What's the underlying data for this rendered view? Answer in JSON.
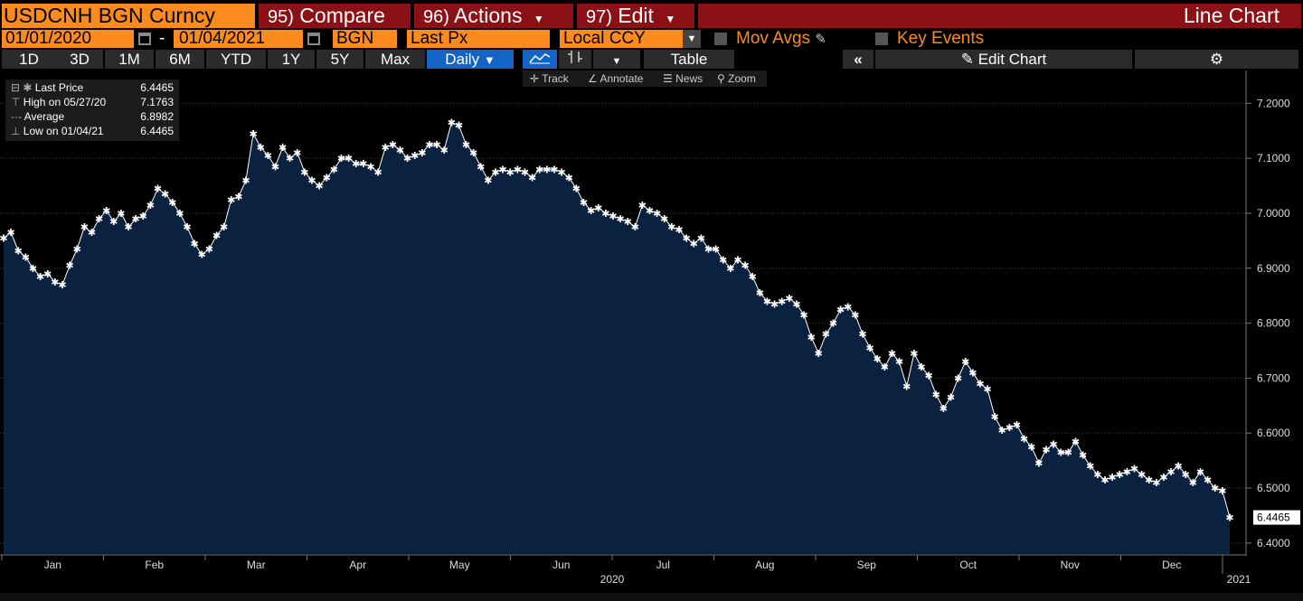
{
  "header": {
    "ticker": "USDCNH BGN Curncy",
    "compare": {
      "num": "95)",
      "label": "Compare"
    },
    "actions": {
      "num": "96)",
      "label": "Actions"
    },
    "edit": {
      "num": "97)",
      "label": "Edit"
    },
    "title": "Line Chart"
  },
  "controls": {
    "start_date": "01/01/2020",
    "dash": "-",
    "end_date": "01/04/2021",
    "source": "BGN",
    "field": "Last Px",
    "currency": "Local CCY",
    "mov_avgs": "Mov Avgs",
    "key_events": "Key Events"
  },
  "periods": [
    "1D",
    "3D",
    "1M",
    "6M",
    "YTD",
    "1Y",
    "5Y",
    "Max"
  ],
  "frequency": "Daily",
  "table_label": "Table",
  "edit_chart_label": "Edit Chart",
  "tools": {
    "track": "Track",
    "annotate": "Annotate",
    "news": "News",
    "zoom": "Zoom"
  },
  "legend": [
    {
      "label": "Last Price",
      "value": "6.4465"
    },
    {
      "label": "High on 05/27/20",
      "value": "7.1763"
    },
    {
      "label": "Average",
      "value": "6.8982"
    },
    {
      "label": "Low on 01/04/21",
      "value": "6.4465"
    }
  ],
  "colors": {
    "orange": "#fb8b1e",
    "dark_red": "#8b1116",
    "blue": "#1464c8",
    "area_fill": "#0b2140"
  },
  "chart_data": {
    "type": "area",
    "title": "USDCNH BGN Curncy",
    "series_name": "Last Price",
    "last_value_label": "6.4465",
    "ylim": [
      6.38,
      7.24
    ],
    "y_ticks": [
      "6.4000",
      "6.5000",
      "6.6000",
      "6.7000",
      "6.8000",
      "6.9000",
      "7.0000",
      "7.1000",
      "7.2000"
    ],
    "month_labels": [
      "Jan",
      "Feb",
      "Mar",
      "Apr",
      "May",
      "Jun",
      "Jul",
      "Aug",
      "Sep",
      "Oct",
      "Nov",
      "Dec"
    ],
    "year_labels": [
      "2020",
      "2021"
    ],
    "values": [
      6.955,
      6.965,
      6.932,
      6.92,
      6.9,
      6.885,
      6.89,
      6.875,
      6.87,
      6.905,
      6.935,
      6.975,
      6.965,
      6.99,
      7.005,
      6.985,
      7.0,
      6.975,
      6.99,
      6.995,
      7.015,
      7.045,
      7.035,
      7.02,
      7.0,
      6.975,
      6.945,
      6.925,
      6.935,
      6.96,
      6.975,
      7.025,
      7.03,
      7.06,
      7.145,
      7.12,
      7.105,
      7.085,
      7.12,
      7.1,
      7.11,
      7.075,
      7.06,
      7.05,
      7.065,
      7.08,
      7.1,
      7.1,
      7.09,
      7.09,
      7.085,
      7.075,
      7.12,
      7.125,
      7.115,
      7.1,
      7.105,
      7.11,
      7.125,
      7.125,
      7.115,
      7.165,
      7.16,
      7.125,
      7.11,
      7.085,
      7.06,
      7.075,
      7.08,
      7.075,
      7.08,
      7.075,
      7.065,
      7.08,
      7.08,
      7.08,
      7.075,
      7.065,
      7.045,
      7.02,
      7.005,
      7.01,
      7.0,
      6.995,
      6.99,
      6.985,
      6.975,
      7.015,
      7.005,
      7.0,
      6.99,
      6.975,
      6.97,
      6.955,
      6.945,
      6.955,
      6.935,
      6.935,
      6.915,
      6.9,
      6.915,
      6.905,
      6.885,
      6.855,
      6.84,
      6.835,
      6.84,
      6.845,
      6.835,
      6.815,
      6.775,
      6.745,
      6.78,
      6.8,
      6.825,
      6.83,
      6.815,
      6.78,
      6.755,
      6.735,
      6.72,
      6.745,
      6.73,
      6.685,
      6.745,
      6.72,
      6.705,
      6.67,
      6.645,
      6.665,
      6.7,
      6.73,
      6.71,
      6.69,
      6.68,
      6.63,
      6.605,
      6.61,
      6.615,
      6.59,
      6.575,
      6.545,
      6.57,
      6.58,
      6.565,
      6.565,
      6.585,
      6.56,
      6.54,
      6.525,
      6.515,
      6.52,
      6.525,
      6.53,
      6.535,
      6.525,
      6.515,
      6.51,
      6.52,
      6.53,
      6.54,
      6.525,
      6.51,
      6.53,
      6.515,
      6.5,
      6.495,
      6.4465
    ]
  }
}
